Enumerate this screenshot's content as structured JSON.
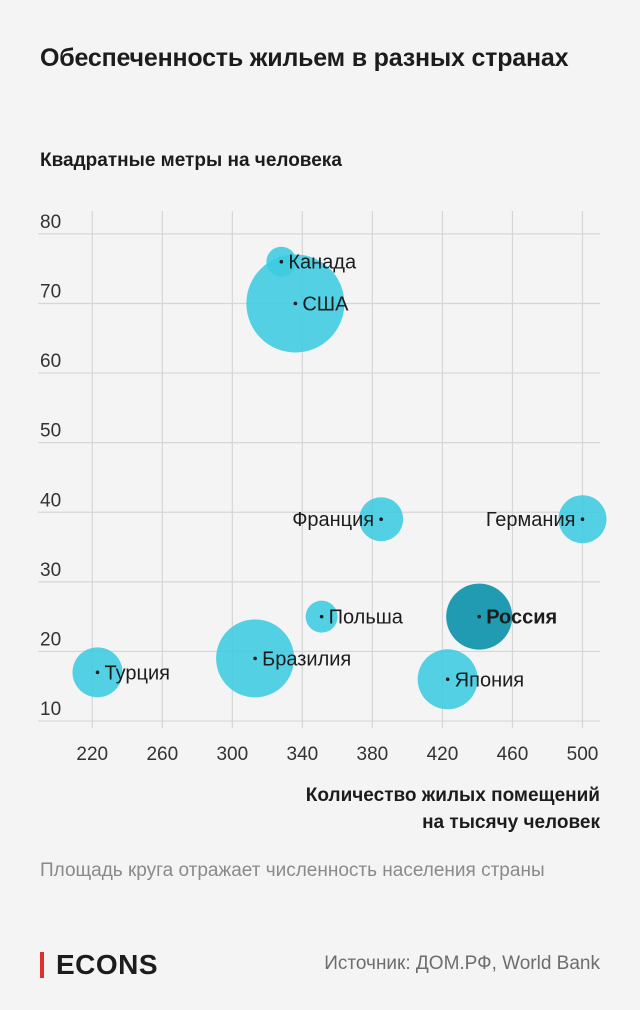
{
  "title": "Обеспеченность жильем в разных странах",
  "note": "Площадь круга отражает численность населения страны",
  "brand": "ECONS",
  "source": "Источник: ДОМ.РФ, World Bank",
  "colors": {
    "bubble": "#3ccbe0",
    "highlight": "#1596ad",
    "brand_accent": "#e0302e",
    "grid": "#d6d6d6"
  },
  "chart_data": {
    "type": "scatter",
    "ylabel": "Квадратные метры на человека",
    "xlabel_lines": [
      "Количество жилых помещений",
      "на тысячу человек"
    ],
    "xlim": [
      205,
      510
    ],
    "ylim": [
      9,
      83
    ],
    "x_ticks": [
      220,
      260,
      300,
      340,
      380,
      420,
      460,
      500
    ],
    "y_ticks": [
      10,
      20,
      30,
      40,
      50,
      60,
      70,
      80
    ],
    "grid": true,
    "points": [
      {
        "label": "Канада",
        "x": 328,
        "y": 76,
        "r": 15,
        "label_side": "right",
        "highlight": false
      },
      {
        "label": "США",
        "x": 336,
        "y": 70,
        "r": 49,
        "label_side": "right",
        "highlight": false
      },
      {
        "label": "Франция",
        "x": 385,
        "y": 39,
        "r": 22,
        "label_side": "left",
        "highlight": false
      },
      {
        "label": "Германия",
        "x": 500,
        "y": 39,
        "r": 24,
        "label_side": "left",
        "highlight": false
      },
      {
        "label": "Польша",
        "x": 351,
        "y": 25,
        "r": 16,
        "label_side": "right",
        "highlight": false
      },
      {
        "label": "Россия",
        "x": 441,
        "y": 25,
        "r": 33,
        "label_side": "right",
        "highlight": true
      },
      {
        "label": "Бразилия",
        "x": 313,
        "y": 19,
        "r": 39,
        "label_side": "right",
        "highlight": false
      },
      {
        "label": "Турция",
        "x": 223,
        "y": 17,
        "r": 25,
        "label_side": "right",
        "highlight": false
      },
      {
        "label": "Япония",
        "x": 423,
        "y": 16,
        "r": 30,
        "label_side": "right",
        "highlight": false
      }
    ]
  }
}
